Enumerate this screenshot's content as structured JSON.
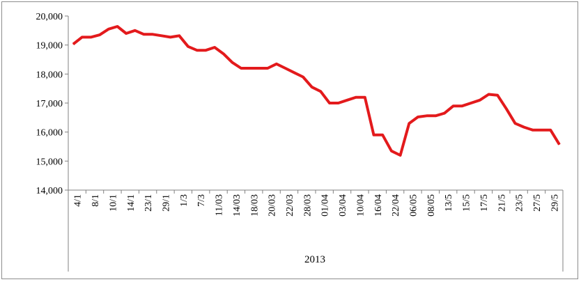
{
  "chart_data": {
    "type": "line",
    "title": "",
    "xlabel": "2013",
    "ylabel": "",
    "ylim": [
      14000,
      20000
    ],
    "yticks": [
      14000,
      15000,
      16000,
      17000,
      18000,
      19000,
      20000
    ],
    "ytick_labels": [
      "14,000",
      "15,000",
      "16,000",
      "17,000",
      "18,000",
      "19,000",
      "20,000"
    ],
    "xtick_labels": [
      "4/1",
      "8/1",
      "10/1",
      "14/1",
      "23/1",
      "29/1",
      "1/3",
      "7/3",
      "11/03",
      "14/03",
      "18/03",
      "20/03",
      "22/03",
      "28/03",
      "01/04",
      "03/04",
      "10/04",
      "16/04",
      "22/04",
      "06/05",
      "08/05",
      "13/5",
      "15/5",
      "17/5",
      "21/5",
      "23/5",
      "27/5",
      "29/5"
    ],
    "grid": false,
    "legend": "none",
    "series": [
      {
        "color": "#e31a1c",
        "values": [
          19030,
          19270,
          19270,
          19350,
          19550,
          19640,
          19400,
          19500,
          19370,
          19370,
          19320,
          19270,
          19320,
          18950,
          18820,
          18820,
          18920,
          18700,
          18400,
          18200,
          18200,
          18200,
          18200,
          18350,
          18200,
          18050,
          17900,
          17550,
          17400,
          17000,
          17000,
          17100,
          17200,
          17200,
          15900,
          15900,
          15350,
          15200,
          16300,
          16520,
          16560,
          16560,
          16650,
          16900,
          16900,
          17000,
          17100,
          17300,
          17270,
          16800,
          16300,
          16170,
          16070,
          16070,
          16070,
          15570
        ]
      }
    ]
  }
}
